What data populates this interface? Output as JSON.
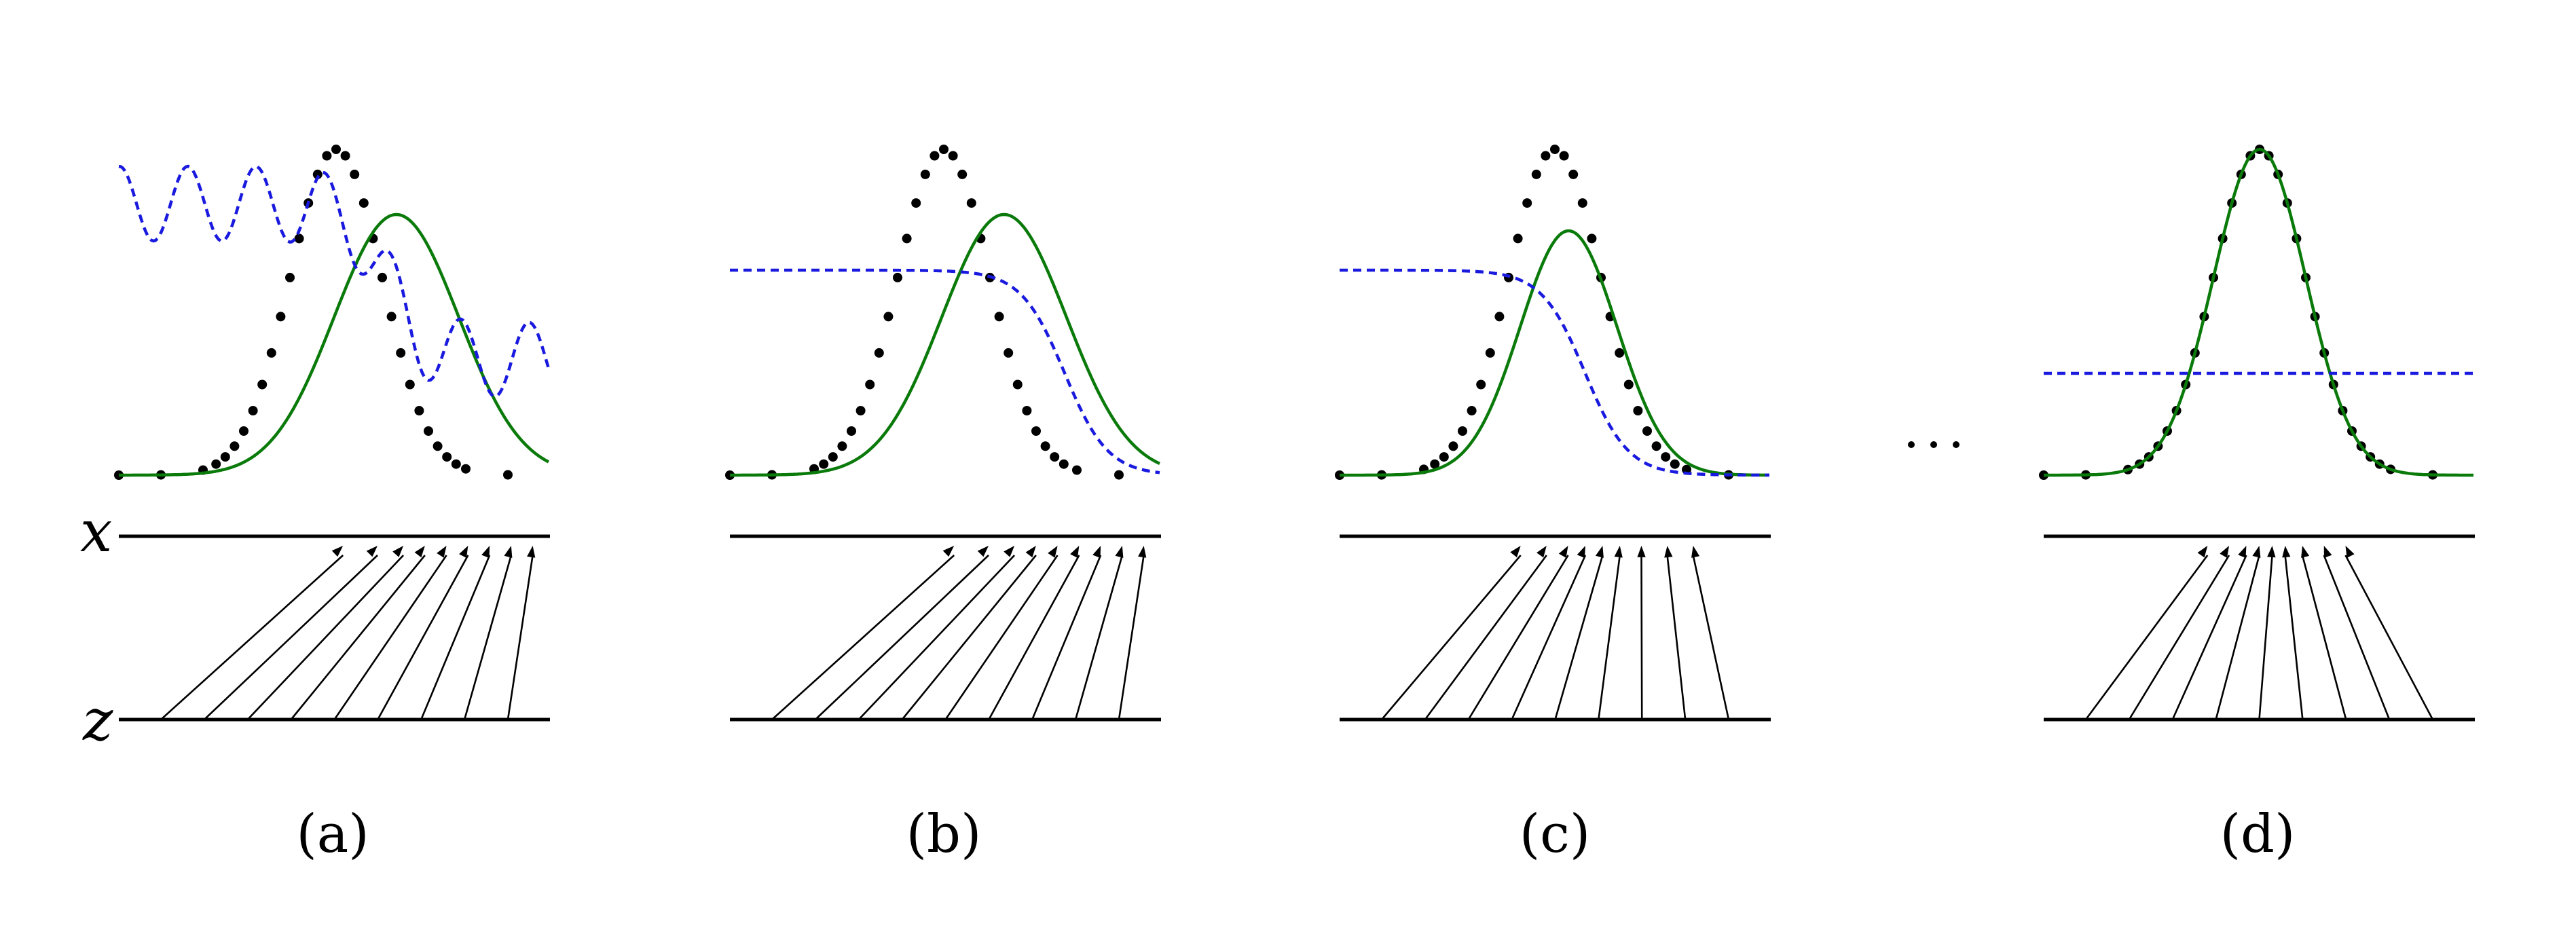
{
  "axis_labels": {
    "x": "x",
    "z": "z"
  },
  "ellipsis": "· · ·",
  "panels": [
    {
      "id": "a",
      "label": "(a)",
      "model_shift": 0.35,
      "model_scale": 0.8,
      "disc": "wavy",
      "arrow_targets": [
        0.52,
        0.6,
        0.66,
        0.71,
        0.76,
        0.81,
        0.86,
        0.91,
        0.96
      ]
    },
    {
      "id": "b",
      "label": "(b)",
      "model_shift": 0.35,
      "model_scale": 0.8,
      "disc": "sigmoid",
      "arrow_targets": [
        0.52,
        0.6,
        0.66,
        0.71,
        0.76,
        0.81,
        0.86,
        0.91,
        0.96
      ]
    },
    {
      "id": "c",
      "label": "(c)",
      "model_shift": 0.08,
      "model_scale": 0.75,
      "disc": "sigmoid",
      "arrow_targets": [
        0.42,
        0.48,
        0.53,
        0.57,
        0.61,
        0.65,
        0.7,
        0.76,
        0.82
      ]
    },
    {
      "id": "d",
      "label": "(d)",
      "model_shift": 0.0,
      "model_scale": 1.0,
      "disc": "flat",
      "arrow_targets": [
        0.38,
        0.43,
        0.47,
        0.5,
        0.53,
        0.56,
        0.6,
        0.65,
        0.7
      ]
    }
  ]
}
